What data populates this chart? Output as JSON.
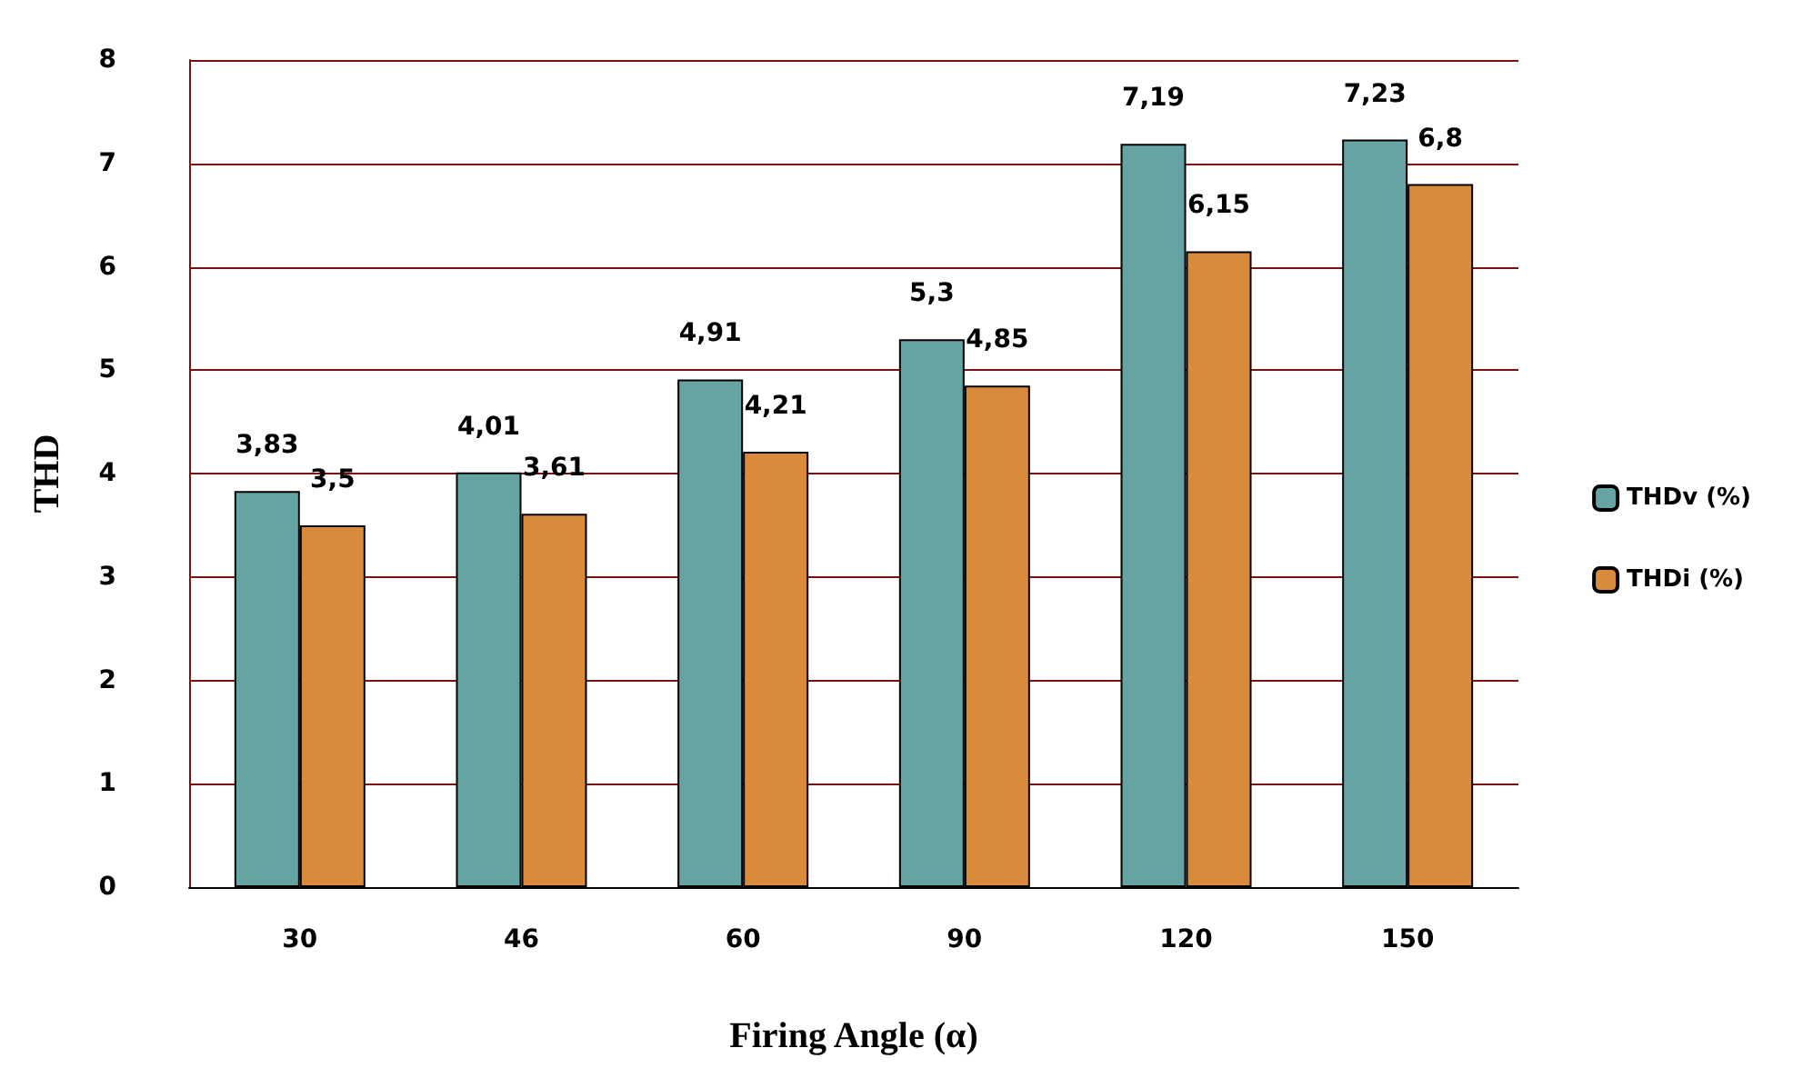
{
  "chart_data": {
    "type": "bar",
    "xlabel": "Firing Angle (α)",
    "ylabel": "THD",
    "categories": [
      "30",
      "46",
      "60",
      "90",
      "120",
      "150"
    ],
    "series": [
      {
        "name": "THDv (%)",
        "color": "#66a3a3",
        "values": [
          3.83,
          4.01,
          4.91,
          5.3,
          7.19,
          7.23
        ],
        "value_labels": [
          "3,83",
          "4,01",
          "4,91",
          "5,3",
          "7,19",
          "7,23"
        ]
      },
      {
        "name": "THDi (%)",
        "color": "#d98a3a",
        "values": [
          3.5,
          3.61,
          4.21,
          4.85,
          6.15,
          6.8
        ],
        "value_labels": [
          "3,5",
          "3,61",
          "4,21",
          "4,85",
          "6,15",
          "6,8"
        ]
      }
    ],
    "ylim": [
      0,
      8
    ],
    "yticks": [
      0,
      1,
      2,
      3,
      4,
      5,
      6,
      7,
      8
    ],
    "grid": "y",
    "legend": "right"
  }
}
